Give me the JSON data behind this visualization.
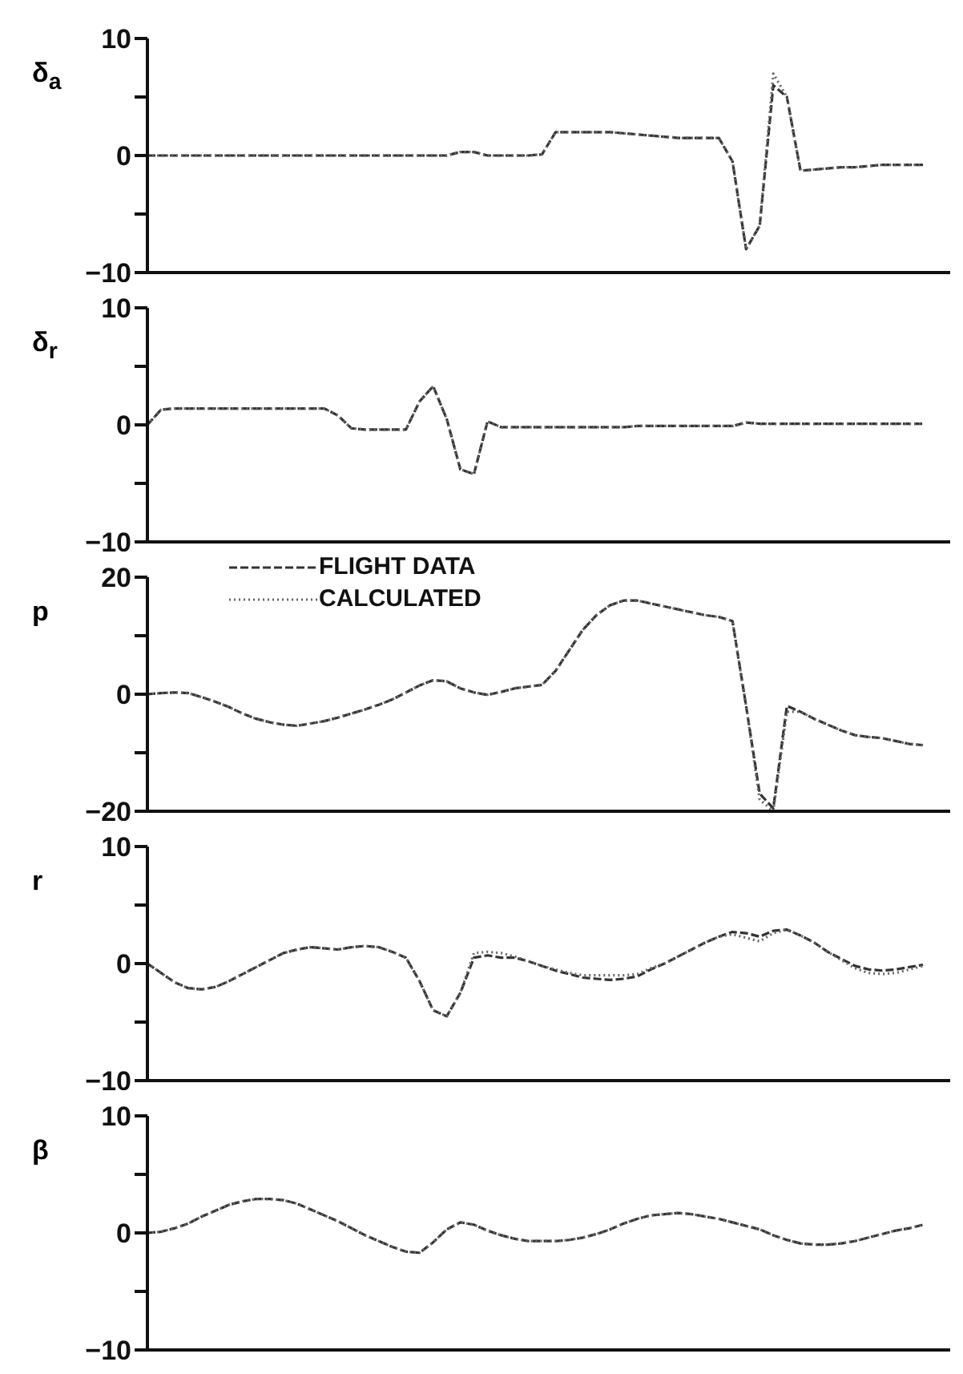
{
  "chart_data": [
    {
      "type": "line",
      "ylabel": "δ$_{a}$",
      "tick_labels": "y",
      "categories": [
        null,
        null,
        null,
        null,
        null,
        null,
        null,
        null,
        null,
        null,
        null,
        null,
        null,
        null,
        null,
        null,
        null,
        null,
        null,
        null,
        null,
        null,
        null,
        null,
        null,
        null,
        null,
        null,
        null,
        null,
        null,
        null,
        null,
        null,
        null,
        null,
        null,
        null,
        null,
        null,
        null,
        null,
        null,
        null,
        null,
        null,
        null,
        null,
        null,
        null,
        null,
        null,
        null,
        null,
        null,
        null,
        null,
        null,
        null,
        null
      ],
      "ylim": [
        -10,
        10
      ],
      "yticks": [
        {
          "value": -10,
          "label": "−10"
        },
        {
          "value": -5,
          "label": null
        },
        0,
        {
          "value": 5,
          "label": null
        },
        10
      ],
      "series": [
        {
          "color": "#333333",
          "line_style": "dashed",
          "values": [
            0,
            0,
            0,
            0,
            0,
            0,
            0,
            0,
            0,
            0,
            0,
            0,
            0,
            0,
            0,
            0,
            0,
            0,
            0,
            0,
            0,
            0,
            0,
            0.3,
            0.3,
            0,
            0,
            0,
            0,
            0.1,
            2,
            2,
            2,
            2,
            2,
            1.9,
            1.8,
            1.7,
            1.6,
            1.5,
            1.5,
            1.5,
            1.5,
            -0.5,
            -8,
            -6,
            6,
            5,
            -1.3,
            -1.2,
            -1.1,
            -1,
            -1,
            -0.9,
            -0.8,
            -0.8,
            -0.8,
            -0.8,
            null,
            null
          ]
        },
        {
          "color": "#666666",
          "line_style": "dotted",
          "values": [
            0,
            0,
            0,
            0,
            0,
            0,
            0,
            0,
            0,
            0,
            0,
            0,
            0,
            0,
            0,
            0,
            0,
            0,
            0,
            0,
            0,
            0,
            0,
            0.3,
            0.3,
            0,
            0,
            0,
            0,
            0.1,
            2,
            2,
            2,
            2,
            2,
            1.9,
            1.8,
            1.7,
            1.6,
            1.5,
            1.5,
            1.5,
            1.5,
            -0.5,
            -8,
            -6,
            7,
            5,
            -1.3,
            -1.2,
            -1.1,
            -1,
            -1,
            -0.9,
            -0.8,
            -0.8,
            -0.8,
            -0.8,
            null,
            null
          ]
        }
      ]
    },
    {
      "type": "line",
      "ylabel": "δ$_{r}$",
      "tick_labels": "y",
      "categories": [
        null,
        null,
        null,
        null,
        null,
        null,
        null,
        null,
        null,
        null,
        null,
        null,
        null,
        null,
        null,
        null,
        null,
        null,
        null,
        null,
        null,
        null,
        null,
        null,
        null,
        null,
        null,
        null,
        null,
        null,
        null,
        null,
        null,
        null,
        null,
        null,
        null,
        null,
        null,
        null,
        null,
        null,
        null,
        null,
        null,
        null,
        null,
        null,
        null,
        null,
        null,
        null,
        null,
        null,
        null,
        null,
        null,
        null,
        null,
        null
      ],
      "ylim": [
        -10,
        10
      ],
      "yticks": [
        {
          "value": -10,
          "label": "−10"
        },
        {
          "value": -5,
          "label": null
        },
        0,
        {
          "value": 5,
          "label": null
        },
        10
      ],
      "series": [
        {
          "color": "#333333",
          "line_style": "dashed",
          "values": [
            0,
            1.3,
            1.4,
            1.4,
            1.4,
            1.4,
            1.4,
            1.4,
            1.4,
            1.4,
            1.4,
            1.4,
            1.4,
            1.4,
            0.8,
            -0.3,
            -0.4,
            -0.4,
            -0.4,
            -0.4,
            2,
            3.3,
            0.5,
            -3.8,
            -4.2,
            0.3,
            -0.2,
            -0.2,
            -0.2,
            -0.2,
            -0.2,
            -0.2,
            -0.2,
            -0.2,
            -0.2,
            -0.2,
            -0.1,
            -0.1,
            -0.1,
            -0.1,
            -0.1,
            -0.1,
            -0.1,
            -0.1,
            0.2,
            0.1,
            0.1,
            0.1,
            0.1,
            0.1,
            0.1,
            0.1,
            0.1,
            0.1,
            0.1,
            0.1,
            0.1,
            0.1,
            null,
            null
          ]
        },
        {
          "color": "#666666",
          "line_style": "dotted",
          "values": [
            0,
            1.3,
            1.4,
            1.4,
            1.4,
            1.4,
            1.4,
            1.4,
            1.4,
            1.4,
            1.4,
            1.4,
            1.4,
            1.4,
            0.8,
            -0.3,
            -0.4,
            -0.4,
            -0.4,
            -0.4,
            2,
            3.3,
            0.5,
            -3.8,
            -4.2,
            0.3,
            -0.2,
            -0.2,
            -0.2,
            -0.2,
            -0.2,
            -0.2,
            -0.2,
            -0.2,
            -0.2,
            -0.2,
            -0.1,
            -0.1,
            -0.1,
            -0.1,
            -0.1,
            -0.1,
            -0.1,
            -0.1,
            0.2,
            0.1,
            0.1,
            0.1,
            0.1,
            0.1,
            0.1,
            0.1,
            0.1,
            0.1,
            0.1,
            0.1,
            0.1,
            0.1,
            null,
            null
          ]
        }
      ]
    },
    {
      "type": "line",
      "ylabel": "p",
      "tick_labels": "y",
      "legend": "top left",
      "categories": [
        null,
        null,
        null,
        null,
        null,
        null,
        null,
        null,
        null,
        null,
        null,
        null,
        null,
        null,
        null,
        null,
        null,
        null,
        null,
        null,
        null,
        null,
        null,
        null,
        null,
        null,
        null,
        null,
        null,
        null,
        null,
        null,
        null,
        null,
        null,
        null,
        null,
        null,
        null,
        null,
        null,
        null,
        null,
        null,
        null,
        null,
        null,
        null,
        null,
        null,
        null,
        null,
        null,
        null,
        null,
        null,
        null,
        null,
        null,
        null
      ],
      "ylim": [
        -20,
        20
      ],
      "yticks": [
        {
          "value": -20,
          "label": "−20"
        },
        {
          "value": -10,
          "label": null
        },
        0,
        {
          "value": 10,
          "label": null
        },
        20
      ],
      "series": [
        {
          "name": "FLIGHT DATA",
          "color": "#333333",
          "line_style": "dashed",
          "values": [
            0,
            0.2,
            0.3,
            0.2,
            -0.5,
            -1.3,
            -2.2,
            -3.3,
            -4.2,
            -4.8,
            -5.2,
            -5.4,
            -5,
            -4.6,
            -4,
            -3.3,
            -2.6,
            -1.8,
            -0.9,
            0.3,
            1.5,
            2.4,
            2.2,
            1,
            0.3,
            -0.1,
            0.4,
            1,
            1.3,
            1.6,
            4,
            7.5,
            11,
            13.5,
            15.2,
            16,
            16,
            15.5,
            15,
            14.5,
            14,
            13.5,
            13.2,
            12.5,
            -2,
            -17,
            -19.5,
            -2,
            -3,
            -4.2,
            -5.2,
            -6.2,
            -7,
            -7.3,
            -7.5,
            -8,
            -8.5,
            -8.7,
            null,
            null
          ]
        },
        {
          "name": "CALCULATED",
          "color": "#666666",
          "line_style": "dotted",
          "values": [
            0,
            0.2,
            0.3,
            0.2,
            -0.5,
            -1.3,
            -2.2,
            -3.3,
            -4.2,
            -4.8,
            -5.2,
            -5.4,
            -5,
            -4.6,
            -4,
            -3.3,
            -2.6,
            -1.8,
            -0.9,
            0.3,
            1.5,
            2.4,
            2.2,
            1,
            0.3,
            -0.1,
            0.4,
            1,
            1.3,
            1.6,
            4,
            7.5,
            11,
            13.5,
            15.2,
            16,
            16,
            15.5,
            15,
            14.5,
            14,
            13.5,
            13.2,
            12.5,
            -2,
            -18,
            -20,
            -3,
            -3,
            -4.2,
            -5.2,
            -6.2,
            -7,
            -7.3,
            -7.5,
            -8,
            -8.5,
            -8.7,
            null,
            null
          ]
        }
      ]
    },
    {
      "type": "line",
      "ylabel": "r",
      "tick_labels": "y",
      "categories": [
        null,
        null,
        null,
        null,
        null,
        null,
        null,
        null,
        null,
        null,
        null,
        null,
        null,
        null,
        null,
        null,
        null,
        null,
        null,
        null,
        null,
        null,
        null,
        null,
        null,
        null,
        null,
        null,
        null,
        null,
        null,
        null,
        null,
        null,
        null,
        null,
        null,
        null,
        null,
        null,
        null,
        null,
        null,
        null,
        null,
        null,
        null,
        null,
        null,
        null,
        null,
        null,
        null,
        null,
        null,
        null,
        null,
        null,
        null,
        null
      ],
      "ylim": [
        -10,
        10
      ],
      "yticks": [
        {
          "value": -10,
          "label": "−10"
        },
        {
          "value": -5,
          "label": null
        },
        0,
        {
          "value": 5,
          "label": null
        },
        10
      ],
      "series": [
        {
          "color": "#333333",
          "line_style": "dashed",
          "values": [
            0,
            -0.8,
            -1.6,
            -2.1,
            -2.2,
            -2,
            -1.5,
            -0.9,
            -0.3,
            0.3,
            0.9,
            1.2,
            1.4,
            1.3,
            1.2,
            1.4,
            1.5,
            1.4,
            1,
            0.5,
            -1.5,
            -4,
            -4.5,
            -2.5,
            0.5,
            0.7,
            0.5,
            0.5,
            0.2,
            -0.2,
            -0.6,
            -0.9,
            -1.2,
            -1.3,
            -1.4,
            -1.3,
            -1.1,
            -0.5,
            0,
            0.6,
            1.2,
            1.8,
            2.3,
            2.7,
            2.6,
            2.3,
            2.8,
            2.9,
            2.4,
            1.8,
            1,
            0.4,
            -0.2,
            -0.5,
            -0.6,
            -0.5,
            -0.3,
            -0.1,
            null,
            null
          ]
        },
        {
          "color": "#666666",
          "line_style": "dotted",
          "values": [
            0,
            -0.8,
            -1.6,
            -2.1,
            -2.2,
            -2,
            -1.5,
            -0.9,
            -0.3,
            0.3,
            0.9,
            1.2,
            1.4,
            1.3,
            1.2,
            1.4,
            1.5,
            1.4,
            1,
            0.5,
            -1.5,
            -4,
            -4.5,
            -2.5,
            0.9,
            1,
            0.9,
            0.6,
            0.2,
            -0.2,
            -0.5,
            -0.8,
            -1,
            -1,
            -1,
            -1,
            -0.9,
            -0.4,
            0,
            0.6,
            1.2,
            1.8,
            2.3,
            2.5,
            2.2,
            1.9,
            2.6,
            2.9,
            2.4,
            1.8,
            1,
            0.3,
            -0.4,
            -0.8,
            -0.9,
            -0.8,
            -0.5,
            -0.2,
            null,
            null
          ]
        }
      ]
    },
    {
      "type": "line",
      "ylabel": "β",
      "tick_labels": "y",
      "categories": [
        null,
        null,
        null,
        null,
        null,
        null,
        null,
        null,
        null,
        null,
        null,
        null,
        null,
        null,
        null,
        null,
        null,
        null,
        null,
        null,
        null,
        null,
        null,
        null,
        null,
        null,
        null,
        null,
        null,
        null,
        null,
        null,
        null,
        null,
        null,
        null,
        null,
        null,
        null,
        null,
        null,
        null,
        null,
        null,
        null,
        null,
        null,
        null,
        null,
        null,
        null,
        null,
        null,
        null,
        null,
        null,
        null,
        null,
        null,
        null
      ],
      "ylim": [
        -10,
        10
      ],
      "yticks": [
        {
          "value": -10,
          "label": "−10"
        },
        {
          "value": -5,
          "label": null
        },
        0,
        {
          "value": 5,
          "label": null
        },
        10
      ],
      "series": [
        {
          "color": "#333333",
          "line_style": "dashed",
          "values": [
            0,
            0.1,
            0.4,
            0.8,
            1.4,
            1.9,
            2.4,
            2.7,
            2.9,
            2.9,
            2.8,
            2.5,
            2,
            1.5,
            1,
            0.4,
            -0.2,
            -0.7,
            -1.2,
            -1.6,
            -1.7,
            -0.8,
            0.3,
            0.9,
            0.7,
            0.2,
            -0.2,
            -0.5,
            -0.7,
            -0.7,
            -0.7,
            -0.6,
            -0.4,
            -0.1,
            0.3,
            0.8,
            1.2,
            1.5,
            1.6,
            1.7,
            1.6,
            1.4,
            1.2,
            0.9,
            0.6,
            0.3,
            -0.2,
            -0.6,
            -0.9,
            -1,
            -1,
            -0.9,
            -0.7,
            -0.4,
            -0.1,
            0.2,
            0.4,
            0.7,
            null,
            null
          ]
        },
        {
          "color": "#666666",
          "line_style": "dotted",
          "values": [
            0,
            0.1,
            0.4,
            0.8,
            1.4,
            1.9,
            2.4,
            2.7,
            2.9,
            2.9,
            2.8,
            2.5,
            2,
            1.5,
            1,
            0.4,
            -0.2,
            -0.7,
            -1.2,
            -1.6,
            -1.7,
            -0.8,
            0.3,
            0.9,
            0.7,
            0.2,
            -0.2,
            -0.5,
            -0.7,
            -0.7,
            -0.7,
            -0.6,
            -0.4,
            -0.1,
            0.3,
            0.8,
            1.2,
            1.5,
            1.6,
            1.7,
            1.6,
            1.4,
            1.2,
            0.9,
            0.6,
            0.3,
            -0.2,
            -0.6,
            -0.9,
            -1,
            -1,
            -0.9,
            -0.7,
            -0.4,
            -0.1,
            0.2,
            0.4,
            0.7,
            null,
            null
          ]
        }
      ]
    }
  ]
}
